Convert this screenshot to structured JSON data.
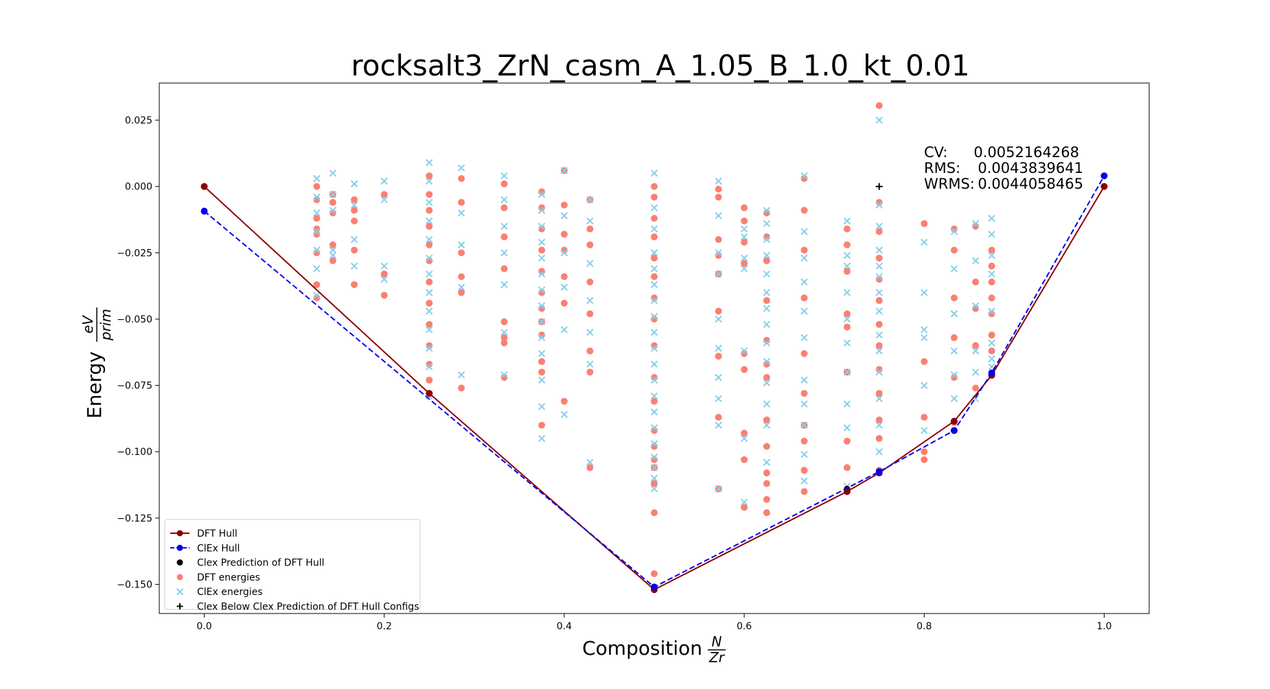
{
  "chart_data": {
    "type": "scatter",
    "title": "rocksalt3_ZrN_casm_A_1.05_B_1.0_kt_0.01",
    "xlabel": "Composition",
    "xlabel_fraction": {
      "num": "N",
      "den": "Zr"
    },
    "ylabel": "Energy",
    "ylabel_fraction": {
      "num": "eV",
      "den": "prim"
    },
    "xlim": [
      -0.05,
      1.05
    ],
    "ylim": [
      -0.161,
      0.039
    ],
    "x_ticks": [
      0.0,
      0.2,
      0.4,
      0.6,
      0.8,
      1.0
    ],
    "x_tick_labels": [
      "0.0",
      "0.2",
      "0.4",
      "0.6",
      "0.8",
      "1.0"
    ],
    "y_ticks": [
      -0.15,
      -0.125,
      -0.1,
      -0.075,
      -0.05,
      -0.025,
      0.0,
      0.025
    ],
    "y_tick_labels": [
      "−0.150",
      "−0.125",
      "−0.100",
      "−0.075",
      "−0.050",
      "−0.025",
      "0.000",
      "0.025"
    ],
    "grid": false,
    "legend_position": "lower-left",
    "colors": {
      "dft_hull": "#8b0000",
      "clex_hull": "#0000ee",
      "dft_energies": "#fa8072",
      "clex_energies": "#87ceeb",
      "black": "#000000"
    },
    "stats": [
      {
        "label": "CV:",
        "value": "0.0052164268"
      },
      {
        "label": "RMS:",
        "value": "0.0043839641"
      },
      {
        "label": "WRMS:",
        "value": "0.0044058465"
      }
    ],
    "series": [
      {
        "name": "DFT Hull",
        "x": [
          0.0,
          0.25,
          0.5,
          0.7143,
          0.75,
          0.8333,
          0.875,
          1.0
        ],
        "y": [
          0.0,
          -0.078,
          -0.152,
          -0.115,
          -0.108,
          -0.0885,
          -0.0712,
          0.0
        ]
      },
      {
        "name": "ClEx Hull",
        "x": [
          0.0,
          0.5,
          0.75,
          0.8333,
          0.875,
          1.0
        ],
        "y": [
          -0.0093,
          -0.151,
          -0.1075,
          -0.092,
          -0.0703,
          0.004
        ]
      },
      {
        "name": "Clex Prediction of DFT Hull",
        "x": [
          0.0,
          0.25,
          0.5,
          0.7143,
          0.75,
          0.8333,
          0.875,
          1.0
        ],
        "y": [
          -0.0093,
          -0.078,
          -0.151,
          -0.114,
          -0.1075,
          -0.092,
          -0.0703,
          0.004
        ]
      },
      {
        "name": "DFT energies",
        "x": [
          0.125,
          0.125,
          0.125,
          0.125,
          0.125,
          0.125,
          0.125,
          0.125,
          0.1429,
          0.1429,
          0.1429,
          0.1429,
          0.1429,
          0.1667,
          0.1667,
          0.1667,
          0.1667,
          0.1667,
          0.2,
          0.2,
          0.2,
          0.25,
          0.25,
          0.25,
          0.25,
          0.25,
          0.25,
          0.25,
          0.25,
          0.25,
          0.25,
          0.25,
          0.25,
          0.2857,
          0.2857,
          0.2857,
          0.2857,
          0.2857,
          0.2857,
          0.3333,
          0.3333,
          0.3333,
          0.3333,
          0.3333,
          0.3333,
          0.3333,
          0.3333,
          0.375,
          0.375,
          0.375,
          0.375,
          0.375,
          0.375,
          0.375,
          0.375,
          0.375,
          0.375,
          0.375,
          0.375,
          0.4,
          0.4,
          0.4,
          0.4,
          0.4,
          0.4,
          0.4,
          0.4286,
          0.4286,
          0.4286,
          0.4286,
          0.4286,
          0.4286,
          0.4286,
          0.4286,
          0.5,
          0.5,
          0.5,
          0.5,
          0.5,
          0.5,
          0.5,
          0.5,
          0.5,
          0.5,
          0.5,
          0.5,
          0.5,
          0.5,
          0.5,
          0.5,
          0.5,
          0.5,
          0.5714,
          0.5714,
          0.5714,
          0.5714,
          0.5714,
          0.5714,
          0.5714,
          0.5714,
          0.5714,
          0.6,
          0.6,
          0.6,
          0.6,
          0.6,
          0.6,
          0.6,
          0.6,
          0.6,
          0.625,
          0.625,
          0.625,
          0.625,
          0.625,
          0.625,
          0.625,
          0.625,
          0.625,
          0.625,
          0.625,
          0.625,
          0.625,
          0.6667,
          0.6667,
          0.6667,
          0.6667,
          0.6667,
          0.6667,
          0.6667,
          0.6667,
          0.6667,
          0.6667,
          0.7143,
          0.7143,
          0.7143,
          0.7143,
          0.7143,
          0.7143,
          0.7143,
          0.7143,
          0.7143,
          0.75,
          0.75,
          0.75,
          0.75,
          0.75,
          0.75,
          0.75,
          0.75,
          0.75,
          0.75,
          0.75,
          0.75,
          0.75,
          0.8,
          0.8,
          0.8,
          0.8,
          0.8,
          0.8333,
          0.8333,
          0.8333,
          0.8333,
          0.8333,
          0.8333,
          0.8571,
          0.8571,
          0.8571,
          0.8571,
          0.8571,
          0.875,
          0.875,
          0.875,
          0.875,
          0.875,
          0.875,
          0.875,
          0.875
        ],
        "y": [
          0.0,
          -0.005,
          -0.012,
          -0.018,
          -0.025,
          -0.037,
          -0.042,
          -0.016,
          -0.003,
          -0.01,
          -0.022,
          -0.028,
          -0.006,
          -0.005,
          -0.009,
          -0.013,
          -0.024,
          -0.037,
          -0.003,
          -0.033,
          -0.041,
          0.004,
          -0.003,
          -0.009,
          -0.015,
          -0.022,
          -0.028,
          -0.036,
          -0.044,
          -0.052,
          -0.06,
          -0.067,
          -0.073,
          0.003,
          -0.006,
          -0.025,
          -0.034,
          -0.04,
          -0.076,
          0.001,
          -0.008,
          -0.019,
          -0.031,
          -0.051,
          -0.057,
          -0.059,
          -0.072,
          -0.002,
          -0.008,
          -0.016,
          -0.024,
          -0.032,
          -0.04,
          -0.046,
          -0.051,
          -0.056,
          -0.066,
          -0.07,
          -0.09,
          0.006,
          -0.007,
          -0.018,
          -0.024,
          -0.034,
          -0.044,
          -0.081,
          -0.005,
          -0.016,
          -0.022,
          -0.036,
          -0.048,
          -0.062,
          -0.07,
          -0.106,
          0.0,
          -0.004,
          -0.012,
          -0.019,
          -0.027,
          -0.034,
          -0.042,
          -0.05,
          -0.06,
          -0.072,
          -0.081,
          -0.092,
          -0.098,
          -0.103,
          -0.106,
          -0.112,
          -0.123,
          -0.146,
          -0.001,
          -0.004,
          -0.02,
          -0.026,
          -0.033,
          -0.047,
          -0.064,
          -0.087,
          -0.114,
          -0.008,
          -0.013,
          -0.021,
          -0.029,
          -0.063,
          -0.069,
          -0.093,
          -0.103,
          -0.121,
          -0.01,
          -0.019,
          -0.028,
          -0.043,
          -0.058,
          -0.067,
          -0.072,
          -0.088,
          -0.098,
          -0.108,
          -0.112,
          -0.118,
          -0.123,
          0.003,
          -0.009,
          -0.024,
          -0.042,
          -0.063,
          -0.078,
          -0.09,
          -0.096,
          -0.107,
          -0.115,
          -0.016,
          -0.022,
          -0.032,
          -0.048,
          -0.053,
          -0.07,
          -0.096,
          -0.106,
          -0.115,
          0.0305,
          -0.006,
          -0.017,
          -0.027,
          -0.035,
          -0.043,
          -0.052,
          -0.06,
          -0.069,
          -0.078,
          -0.088,
          -0.095,
          -0.107,
          -0.014,
          -0.066,
          -0.087,
          -0.1,
          -0.103,
          -0.016,
          -0.024,
          -0.042,
          -0.057,
          -0.072,
          -0.089,
          -0.015,
          -0.036,
          -0.046,
          -0.06,
          -0.076,
          -0.024,
          -0.03,
          -0.036,
          -0.042,
          -0.048,
          -0.056,
          -0.062,
          -0.071
        ]
      },
      {
        "name": "ClEx energies",
        "x": [
          0.125,
          0.125,
          0.125,
          0.125,
          0.125,
          0.125,
          0.125,
          0.1429,
          0.1429,
          0.1429,
          0.1429,
          0.1429,
          0.1667,
          0.1667,
          0.1667,
          0.1667,
          0.2,
          0.2,
          0.2,
          0.2,
          0.25,
          0.25,
          0.25,
          0.25,
          0.25,
          0.25,
          0.25,
          0.25,
          0.25,
          0.25,
          0.25,
          0.25,
          0.25,
          0.2857,
          0.2857,
          0.2857,
          0.2857,
          0.2857,
          0.3333,
          0.3333,
          0.3333,
          0.3333,
          0.3333,
          0.3333,
          0.3333,
          0.375,
          0.375,
          0.375,
          0.375,
          0.375,
          0.375,
          0.375,
          0.375,
          0.375,
          0.375,
          0.375,
          0.375,
          0.375,
          0.375,
          0.4,
          0.4,
          0.4,
          0.4,
          0.4,
          0.4,
          0.4286,
          0.4286,
          0.4286,
          0.4286,
          0.4286,
          0.4286,
          0.4286,
          0.5,
          0.5,
          0.5,
          0.5,
          0.5,
          0.5,
          0.5,
          0.5,
          0.5,
          0.5,
          0.5,
          0.5,
          0.5,
          0.5,
          0.5,
          0.5,
          0.5,
          0.5,
          0.5,
          0.5,
          0.5714,
          0.5714,
          0.5714,
          0.5714,
          0.5714,
          0.5714,
          0.5714,
          0.5714,
          0.5714,
          0.5714,
          0.6,
          0.6,
          0.6,
          0.6,
          0.6,
          0.6,
          0.6,
          0.625,
          0.625,
          0.625,
          0.625,
          0.625,
          0.625,
          0.625,
          0.625,
          0.625,
          0.625,
          0.625,
          0.625,
          0.625,
          0.625,
          0.6667,
          0.6667,
          0.6667,
          0.6667,
          0.6667,
          0.6667,
          0.6667,
          0.6667,
          0.6667,
          0.6667,
          0.6667,
          0.7143,
          0.7143,
          0.7143,
          0.7143,
          0.7143,
          0.7143,
          0.7143,
          0.7143,
          0.7143,
          0.7143,
          0.75,
          0.75,
          0.75,
          0.75,
          0.75,
          0.75,
          0.75,
          0.75,
          0.75,
          0.75,
          0.75,
          0.75,
          0.75,
          0.75,
          0.8,
          0.8,
          0.8,
          0.8,
          0.8,
          0.8,
          0.8333,
          0.8333,
          0.8333,
          0.8333,
          0.8333,
          0.8333,
          0.8571,
          0.8571,
          0.8571,
          0.8571,
          0.8571,
          0.8571,
          0.875,
          0.875,
          0.875,
          0.875,
          0.875,
          0.875,
          0.875,
          0.875
        ],
        "y": [
          0.003,
          -0.004,
          -0.01,
          -0.017,
          -0.024,
          -0.031,
          -0.041,
          0.005,
          -0.003,
          -0.009,
          -0.024,
          -0.026,
          0.001,
          -0.007,
          -0.02,
          -0.03,
          0.002,
          -0.005,
          -0.03,
          -0.035,
          0.009,
          0.002,
          -0.006,
          -0.013,
          -0.02,
          -0.027,
          -0.033,
          -0.04,
          -0.047,
          -0.054,
          -0.061,
          -0.068,
          -0.079,
          0.007,
          -0.01,
          -0.022,
          -0.038,
          -0.071,
          0.004,
          -0.005,
          -0.015,
          -0.025,
          -0.037,
          -0.055,
          -0.071,
          -0.003,
          -0.009,
          -0.015,
          -0.021,
          -0.027,
          -0.033,
          -0.039,
          -0.045,
          -0.051,
          -0.057,
          -0.063,
          -0.073,
          -0.083,
          -0.095,
          0.006,
          -0.011,
          -0.025,
          -0.038,
          -0.054,
          -0.086,
          -0.005,
          -0.013,
          -0.029,
          -0.043,
          -0.055,
          -0.067,
          -0.104,
          0.005,
          -0.008,
          -0.016,
          -0.025,
          -0.031,
          -0.037,
          -0.043,
          -0.049,
          -0.055,
          -0.061,
          -0.067,
          -0.073,
          -0.079,
          -0.085,
          -0.091,
          -0.097,
          -0.102,
          -0.106,
          -0.11,
          -0.114,
          0.002,
          -0.011,
          -0.025,
          -0.033,
          -0.05,
          -0.061,
          -0.072,
          -0.08,
          -0.09,
          -0.114,
          -0.016,
          -0.019,
          -0.027,
          -0.031,
          -0.062,
          -0.095,
          -0.119,
          -0.009,
          -0.014,
          -0.02,
          -0.026,
          -0.033,
          -0.04,
          -0.046,
          -0.052,
          -0.059,
          -0.066,
          -0.074,
          -0.082,
          -0.09,
          -0.104,
          0.004,
          -0.017,
          -0.027,
          -0.036,
          -0.047,
          -0.057,
          -0.073,
          -0.082,
          -0.09,
          -0.101,
          -0.111,
          -0.013,
          -0.026,
          -0.03,
          -0.04,
          -0.05,
          -0.059,
          -0.07,
          -0.082,
          -0.091,
          -0.113,
          0.025,
          -0.007,
          -0.015,
          -0.024,
          -0.03,
          -0.034,
          -0.04,
          -0.047,
          -0.056,
          -0.062,
          -0.07,
          -0.08,
          -0.09,
          -0.1,
          -0.021,
          -0.04,
          -0.054,
          -0.057,
          -0.075,
          -0.092,
          -0.017,
          -0.031,
          -0.048,
          -0.062,
          -0.071,
          -0.08,
          -0.014,
          -0.028,
          -0.045,
          -0.062,
          -0.07,
          -0.08,
          -0.012,
          -0.018,
          -0.026,
          -0.033,
          -0.047,
          -0.059,
          -0.065,
          -0.068
        ]
      },
      {
        "name": "Clex Below Clex Prediction of DFT Hull Configs",
        "x": [
          0.75
        ],
        "y": [
          0.0
        ]
      }
    ]
  }
}
